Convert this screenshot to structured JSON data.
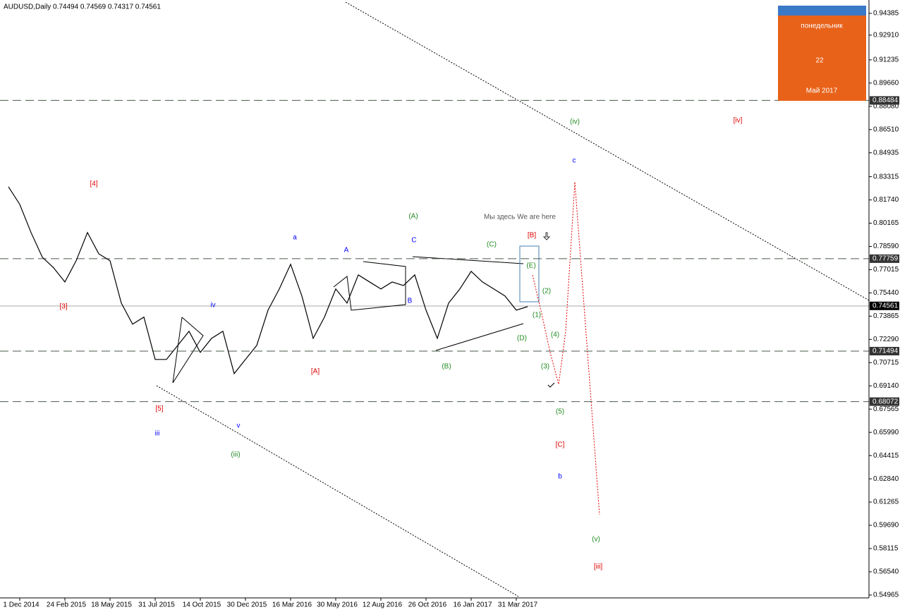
{
  "chart_data": {
    "type": "line",
    "title": "AUDUSD,Daily  0.74494 0.74569 0.74317 0.74561",
    "categories": [
      null,
      "1 Dec 2014",
      null,
      null,
      null,
      "24 Feb 2015",
      null,
      null,
      null,
      "18 May 2015",
      null,
      null,
      null,
      "31 Jul 2015",
      null,
      null,
      null,
      "14 Oct 2015",
      null,
      null,
      null,
      "30 Dec 2015",
      null,
      null,
      null,
      "16 Mar 2016",
      null,
      null,
      null,
      "30 May 2016",
      null,
      null,
      null,
      "12 Aug 2016",
      null,
      null,
      null,
      "26 Oct 2016",
      null,
      null,
      null,
      "16 Jan 2017",
      null,
      null,
      null,
      "31 Mar 2017",
      null
    ],
    "series": [
      {
        "name": "AUDUSD",
        "color": "#000000",
        "values": [
          0.8263,
          0.8144,
          0.7953,
          0.7786,
          0.7714,
          0.7618,
          0.7762,
          0.7953,
          0.7809,
          0.7762,
          0.7475,
          0.7332,
          0.738,
          0.7093,
          0.7093,
          0.7188,
          0.7284,
          0.7141,
          0.7236,
          0.7284,
          0.6997,
          0.7093,
          0.7188,
          0.7427,
          0.7571,
          0.7738,
          0.7523,
          0.7236,
          0.738,
          0.7571,
          0.7475,
          0.7666,
          0.7618,
          0.7571,
          0.7618,
          0.7594,
          0.7666,
          0.7427,
          0.7236,
          0.7475,
          0.7571,
          0.769,
          0.7618,
          0.7571,
          0.7523,
          0.7427,
          0.7451
        ]
      }
    ],
    "ylim": [
      0.5477,
      0.9529
    ],
    "yticks": [
      {
        "value": 0.94385,
        "label": "0.94385"
      },
      {
        "value": 0.9291,
        "label": "0.92910"
      },
      {
        "value": 0.91235,
        "label": "0.91235"
      },
      {
        "value": 0.8966,
        "label": "0.89660"
      },
      {
        "value": 0.8808,
        "label": "0.88080"
      },
      {
        "value": 0.8651,
        "label": "0.86510"
      },
      {
        "value": 0.84935,
        "label": "0.84935"
      },
      {
        "value": 0.83315,
        "label": "0.83315"
      },
      {
        "value": 0.8174,
        "label": "0.81740"
      },
      {
        "value": 0.80165,
        "label": "0.80165"
      },
      {
        "value": 0.7859,
        "label": "0.78590"
      },
      {
        "value": 0.77015,
        "label": "0.77015"
      },
      {
        "value": 0.7544,
        "label": "0.75440"
      },
      {
        "value": 0.73865,
        "label": "0.73865"
      },
      {
        "value": 0.7229,
        "label": "0.72290"
      },
      {
        "value": 0.70715,
        "label": "0.70715"
      },
      {
        "value": 0.6914,
        "label": "0.69140"
      },
      {
        "value": 0.67565,
        "label": "0.67565"
      },
      {
        "value": 0.6599,
        "label": "0.65990"
      },
      {
        "value": 0.64415,
        "label": "0.64415"
      },
      {
        "value": 0.6284,
        "label": "0.62840"
      },
      {
        "value": 0.61265,
        "label": "0.61265"
      },
      {
        "value": 0.5969,
        "label": "0.59690"
      },
      {
        "value": 0.58115,
        "label": "0.58115"
      },
      {
        "value": 0.5654,
        "label": "0.56540"
      },
      {
        "value": 0.54965,
        "label": "0.54965"
      }
    ],
    "levels": [
      0.88484,
      0.77759,
      0.71494,
      0.68072
    ],
    "last_price": 0.74561,
    "annotations": [
      {
        "text": "[4]",
        "color": "#e00000"
      },
      {
        "text": "[3]",
        "color": "#e00000"
      },
      {
        "text": "[5]",
        "color": "#e00000"
      },
      {
        "text": "iii",
        "color": "#0000ff"
      },
      {
        "text": "iv",
        "color": "#0000ff"
      },
      {
        "text": "v",
        "color": "#0000ff"
      },
      {
        "text": "(iii)",
        "color": "#228b22"
      },
      {
        "text": "a",
        "color": "#0000ff"
      },
      {
        "text": "[A]",
        "color": "#e00000"
      },
      {
        "text": "A",
        "color": "#0000ff"
      },
      {
        "text": "C",
        "color": "#0000ff"
      },
      {
        "text": "B",
        "color": "#0000ff"
      },
      {
        "text": "(A)",
        "color": "#228b22"
      },
      {
        "text": "(C)",
        "color": "#228b22"
      },
      {
        "text": "(B)",
        "color": "#228b22"
      },
      {
        "text": "(D)",
        "color": "#228b22"
      },
      {
        "text": "(E)",
        "color": "#228b22"
      },
      {
        "text": "(2)",
        "color": "#228b22"
      },
      {
        "text": "(1)",
        "color": "#228b22"
      },
      {
        "text": "(4)",
        "color": "#228b22"
      },
      {
        "text": "(3)",
        "color": "#228b22"
      },
      {
        "text": "(5)",
        "color": "#228b22"
      },
      {
        "text": "[B]",
        "color": "#e00000"
      },
      {
        "text": "[C]",
        "color": "#e00000"
      },
      {
        "text": "b",
        "color": "#0000ff"
      },
      {
        "text": "c",
        "color": "#0000ff"
      },
      {
        "text": "(iv)",
        "color": "#228b22"
      },
      {
        "text": "[iv]",
        "color": "#e00000"
      },
      {
        "text": "(v)",
        "color": "#228b22"
      },
      {
        "text": "[iii]",
        "color": "#e00000"
      },
      {
        "text": "Мы здесь We are here",
        "color": "#555555"
      }
    ],
    "calendar": {
      "weekday": "понедельник",
      "day": "22",
      "month": "Май 2017"
    }
  }
}
